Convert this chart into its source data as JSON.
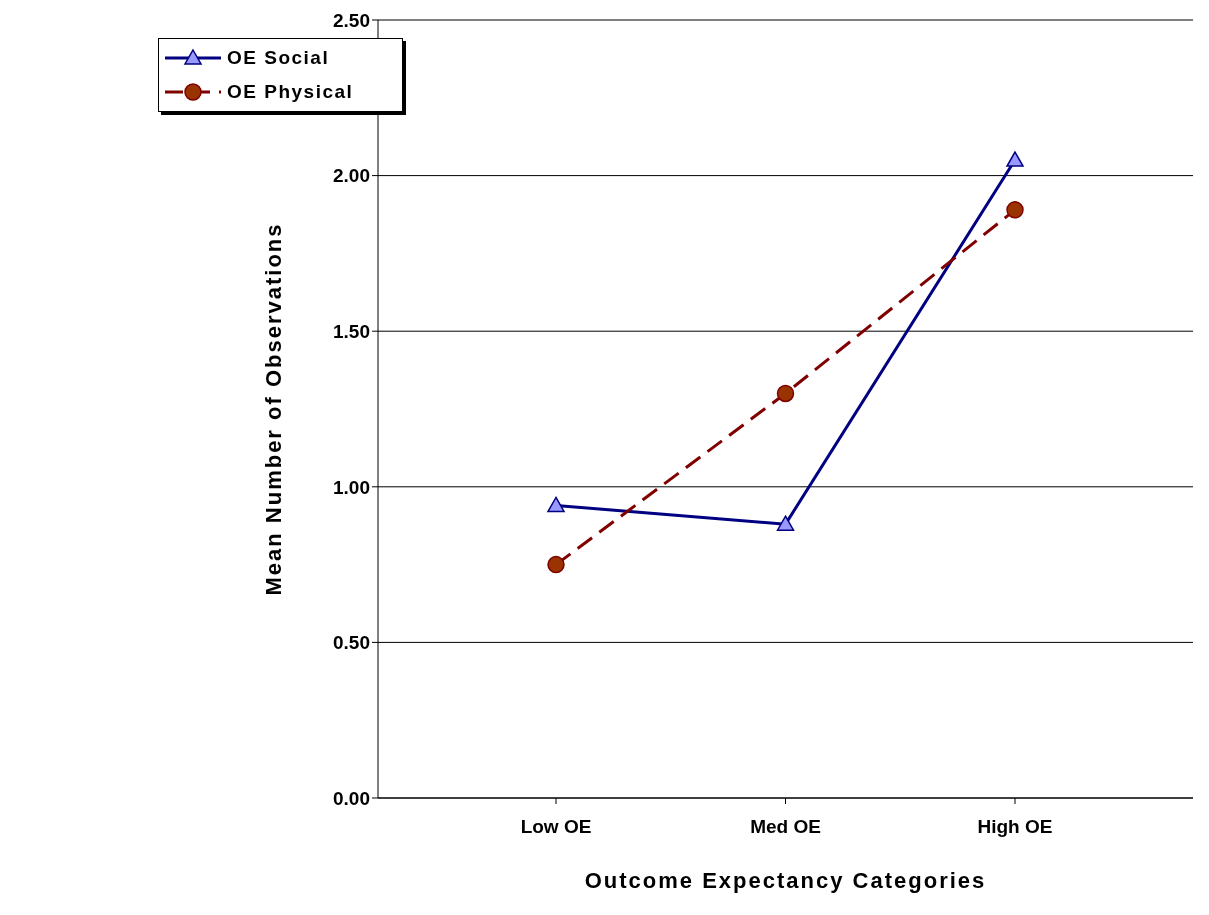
{
  "chart_data": {
    "type": "line",
    "xlabel": "Outcome Expectancy Categories",
    "ylabel": "Mean Number of Observations",
    "categories": [
      "Low OE",
      "Med OE",
      "High OE"
    ],
    "series": [
      {
        "name": "OE Social",
        "color": "#000080",
        "marker": "triangle",
        "line_style": "solid",
        "values": [
          0.94,
          0.88,
          2.05
        ]
      },
      {
        "name": "OE Physical",
        "color": "#800000",
        "marker": "circle",
        "line_style": "dashed",
        "values": [
          0.75,
          1.3,
          1.89
        ]
      }
    ],
    "ylim": [
      0,
      2.5
    ],
    "yticks": [
      {
        "value": 0,
        "label": "0.00"
      },
      {
        "value": 0.5,
        "label": "0.50"
      },
      {
        "value": 1,
        "label": "1.00"
      },
      {
        "value": 1.5,
        "label": "1.50"
      },
      {
        "value": 2,
        "label": "2.00"
      },
      {
        "value": 2.5,
        "label": "2.50"
      }
    ],
    "grid": "y",
    "legend": "top left"
  }
}
